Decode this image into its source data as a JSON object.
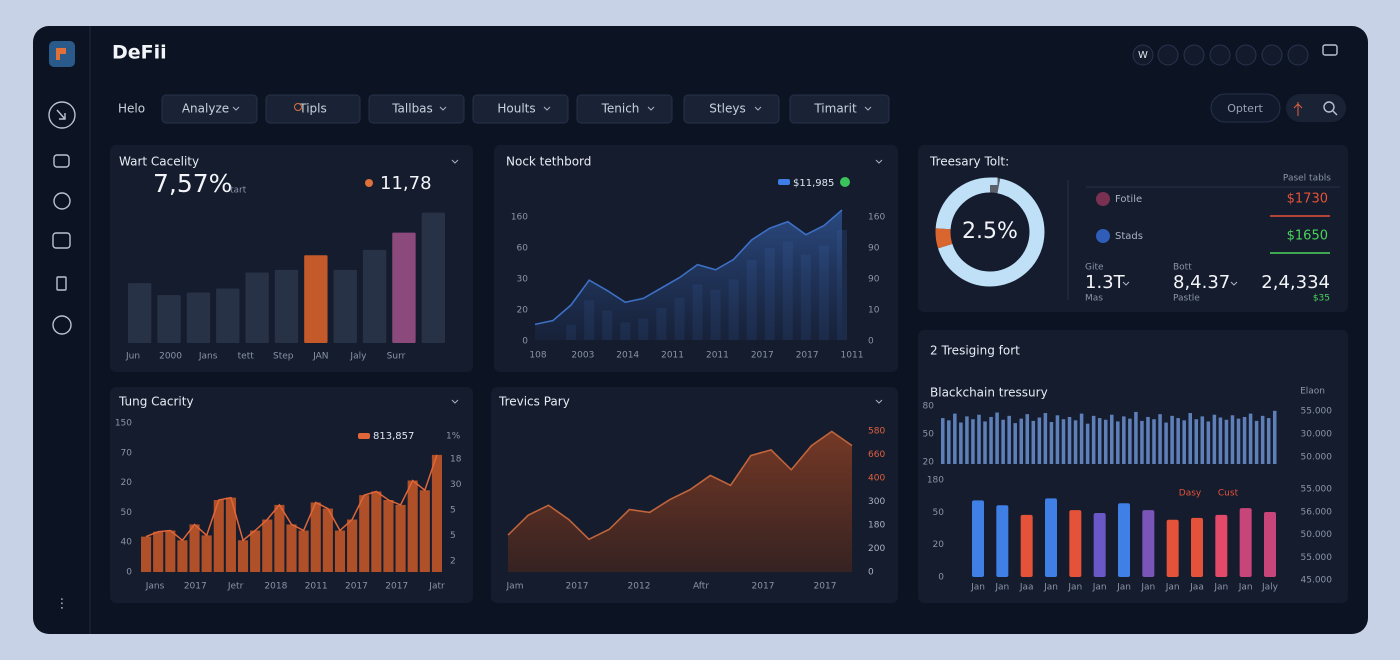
{
  "header": {
    "title": "DeFii",
    "icon_label": "W"
  },
  "nav": {
    "tabs": [
      "Helo",
      "Analyze",
      "Tipls",
      "Tallbas",
      "Hoults",
      "Tenich",
      "Stleys",
      "Timarit"
    ],
    "button": "Optert"
  },
  "panels": {
    "wart": {
      "type": "bar",
      "title": "Wart Cacelity",
      "kpi": "7,57%",
      "kpi_unit": "tart",
      "kpi2": "11,78",
      "x_labels": [
        "Jun",
        "2000",
        "Jans",
        "tett",
        "Step",
        "JAN",
        "Jaly",
        "Surr"
      ],
      "values": [
        45,
        36,
        38,
        41,
        53,
        55,
        66,
        55,
        70,
        83,
        98
      ],
      "colors": [
        "#283247",
        "#283247",
        "#283247",
        "#283247",
        "#283247",
        "#283247",
        "#c4592a",
        "#283247",
        "#283247",
        "#8c4a7c",
        "#283247"
      ],
      "ylim": [
        0,
        100
      ]
    },
    "nock": {
      "type": "area",
      "title": "Nock tethbord",
      "legend": "$11,985",
      "color": "#3d6fc4",
      "y_labels": [
        "160",
        "60",
        "30",
        "20",
        "0"
      ],
      "y2_labels": [
        "160",
        "90",
        "90",
        "10",
        "0"
      ],
      "x_labels": [
        "108",
        "2003",
        "2014",
        "2011",
        "2011",
        "2017",
        "2017",
        "1011"
      ],
      "values": [
        12,
        15,
        27,
        46,
        38,
        29,
        32,
        40,
        48,
        58,
        54,
        62,
        77,
        86,
        91,
        81,
        88,
        100
      ],
      "ylim": [
        0,
        100
      ]
    },
    "treasury": {
      "type": "pie",
      "title": "Treesary Tolt:",
      "center": "2.5%",
      "values": [
        3,
        67,
        6,
        24
      ],
      "colors": [
        "#5b606b",
        "#bfe0f7",
        "#d9652f",
        "#bfe0f7"
      ],
      "table_header": "Pasel tabls",
      "rows": [
        {
          "name": "Fotile",
          "value": "$1730",
          "color": "#e4523a"
        },
        {
          "name": "Stads",
          "value": "$1650",
          "color": "#4cd35a"
        }
      ],
      "stats": [
        {
          "label": "Gite",
          "value": "1.3T",
          "sub": "Mas"
        },
        {
          "label": "Bott",
          "value": "8,4.37",
          "sub": "Pastle"
        },
        {
          "value": "2,4,334",
          "sub": "$35"
        }
      ]
    },
    "tresiging": {
      "type": "bar",
      "title": "2 Tresiging fort",
      "subtitle": "Blackchain tressury",
      "right_label": "Elaon",
      "top_y_labels": [
        "80",
        "50",
        "20"
      ],
      "top_y2_labels": [
        "55.000",
        "30.000",
        "50.000"
      ],
      "top_values": [
        82,
        78,
        90,
        74,
        85,
        80,
        88,
        76,
        84,
        92,
        79,
        86,
        73,
        81,
        89,
        77,
        83,
        91,
        75,
        87,
        80,
        84,
        78,
        90,
        72,
        86,
        82,
        79,
        88,
        76,
        85,
        81,
        93,
        77,
        84,
        80,
        89,
        74,
        86,
        82,
        78,
        91,
        80,
        85,
        76,
        88,
        83,
        79,
        87,
        81,
        84,
        90,
        77,
        86,
        82,
        95
      ],
      "top_color": "#5e7fb8",
      "top_ylim": [
        0,
        100
      ],
      "y_labels": [
        "180",
        "50",
        "20",
        "0"
      ],
      "y2_labels": [
        "55.000",
        "56.000",
        "50.000",
        "55.000",
        "45.000"
      ],
      "legend": [
        {
          "name": "Dasy",
          "color": "#e4523a"
        },
        {
          "name": "Cust",
          "color": "#e4523a"
        }
      ],
      "categories": [
        "Jan",
        "Jan",
        "Jaa",
        "Jan",
        "Jan",
        "Jan",
        "Jan",
        "Jan",
        "Jan",
        "Jaa",
        "Jan",
        "Jan",
        "Jaly"
      ],
      "values": [
        79,
        74,
        64,
        81,
        69,
        66,
        76,
        69,
        59,
        61,
        64,
        71,
        67
      ],
      "colors": [
        "#3f7fe6",
        "#3f7fe6",
        "#e4523a",
        "#3f7fe6",
        "#e4523a",
        "#6a58c8",
        "#3f7fe6",
        "#7a55b8",
        "#e4523a",
        "#e4523a",
        "#e34a6a",
        "#c8457a",
        "#c8457a"
      ],
      "ylim": [
        0,
        100
      ]
    },
    "tung": {
      "type": "bar",
      "title": "Tung Cacrity",
      "legend": "813,857",
      "legend2": "1%",
      "color": "#b05028",
      "line_color": "#e0663a",
      "y_labels": [
        "150",
        "70",
        "20",
        "50",
        "40",
        "0"
      ],
      "y2_labels": [
        "18",
        "30",
        "5",
        "5",
        "2"
      ],
      "x_labels": [
        "Jans",
        "2017",
        "Jetr",
        "2018",
        "2011",
        "2017",
        "2017",
        "Jatr"
      ],
      "values": [
        29,
        33,
        34,
        26,
        39,
        30,
        59,
        61,
        26,
        34,
        43,
        55,
        39,
        34,
        57,
        52,
        34,
        43,
        63,
        66,
        59,
        55,
        75,
        67,
        96
      ],
      "ylim": [
        0,
        100
      ]
    },
    "trevics": {
      "type": "area",
      "title": "Trevics Pary",
      "color": "#c0643c",
      "y2_labels": [
        "580",
        "660",
        "400",
        "300",
        "180",
        "200",
        "0"
      ],
      "tick_colors": [
        "#e0603e",
        "#e0603e",
        "#e0603e",
        "#a9b1c2",
        "#a9b1c2",
        "#a9b1c2",
        "#a9b1c2"
      ],
      "x_labels": [
        "Jam",
        "2017",
        "2012",
        "Aftr",
        "2017",
        "2017"
      ],
      "values": [
        26,
        40,
        47,
        37,
        23,
        30,
        44,
        42,
        51,
        58,
        68,
        61,
        82,
        86,
        72,
        89,
        99,
        89
      ],
      "ylim": [
        0,
        100
      ]
    }
  }
}
